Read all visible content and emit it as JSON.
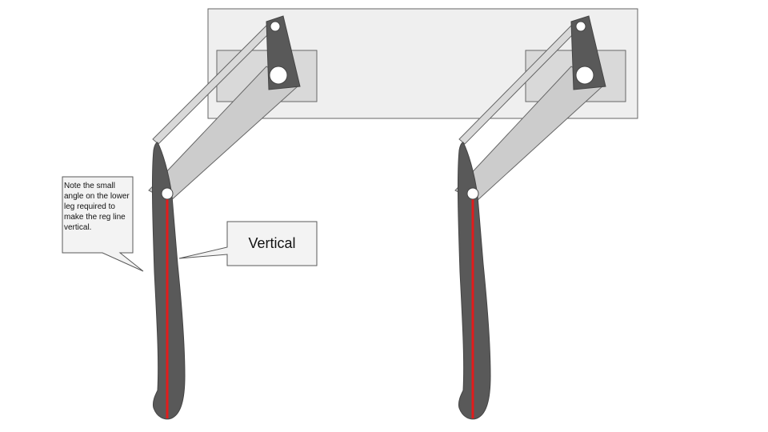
{
  "callouts": {
    "note": "Note the small angle on the lower leg required to make the reg line vertical.",
    "vertical": "Vertical"
  },
  "colors": {
    "background": "#ffffff",
    "mount_plate": "#efefef",
    "mount_plate_stroke": "#666666",
    "inner_block": "#d9d9d9",
    "linkage_bar": "#cccccc",
    "bracket": "#595959",
    "leg": "#595959",
    "reg_line": "#e31b1b",
    "pivot": "#ffffff",
    "callout_fill": "#f3f3f3",
    "callout_stroke": "#595959"
  }
}
